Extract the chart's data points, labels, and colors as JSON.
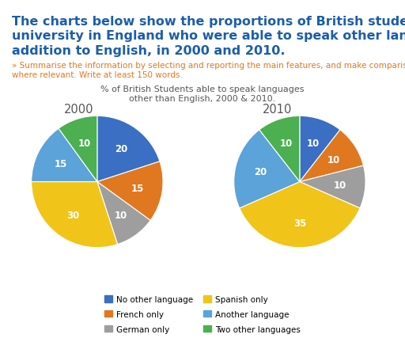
{
  "title_main_line1": "The charts below show the proportions of British students at one",
  "title_main_line2": "university in England who were able to speak other languages in",
  "title_main_line3": "addition to English, in 2000 and 2010.",
  "subtitle_line1": "» Summarise the information by selecting and reporting the main features, and make comparison",
  "subtitle_line2": "where relevant. Write at least 150 words.",
  "chart_title_line1": "% of British Students able to speak languages",
  "chart_title_line2": "other than English, 2000 & 2010.",
  "title_color": "#1B5EA8",
  "subtitle_color": "#E07820",
  "chart_title_color": "#555555",
  "year_label_color": "#555555",
  "year_2000_label": "2000",
  "year_2010_label": "2010",
  "categories": [
    "No other language",
    "French only",
    "German only",
    "Spanish only",
    "Another language",
    "Two other languages"
  ],
  "colors": [
    "#3A6FC4",
    "#E07820",
    "#9E9E9E",
    "#F0C419",
    "#5BA3D9",
    "#4CAF50"
  ],
  "values_2000": [
    20,
    15,
    10,
    30,
    15,
    10
  ],
  "values_2010": [
    10,
    10,
    10,
    35,
    20,
    10
  ],
  "labels_2000": [
    "20",
    "15",
    "10",
    "30",
    "15",
    "10"
  ],
  "labels_2010": [
    "10",
    "10",
    "10",
    "35",
    "20",
    "10"
  ],
  "startangle_2000": 90,
  "startangle_2010": 90,
  "background_color": "#FFFFFF",
  "legend_fontsize": 7.5,
  "label_fontsize": 8.5,
  "title_fontsize": 11.5,
  "subtitle_fontsize": 7.5,
  "chart_title_fontsize": 8.0,
  "year_fontsize": 10.5
}
